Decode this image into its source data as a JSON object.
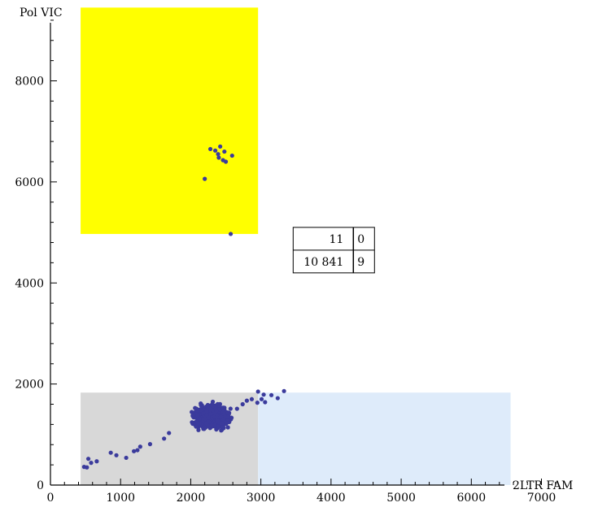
{
  "chart_data": {
    "type": "scatter",
    "title": "",
    "xlabel": "2LTR FAM",
    "ylabel": "Pol VIC",
    "xlim": [
      0,
      7400
    ],
    "ylim": [
      0,
      9600
    ],
    "x_ticks": [
      0,
      1000,
      2000,
      3000,
      4000,
      5000,
      6000,
      7000
    ],
    "y_ticks": [
      0,
      2000,
      4000,
      6000,
      8000
    ],
    "x_tick_labels": [
      "0",
      "1000",
      "2000",
      "3000",
      "4000",
      "5000",
      "6000",
      "7000"
    ],
    "y_tick_labels": [
      "0",
      "2000",
      "4000",
      "6000",
      "8000"
    ],
    "grid": false,
    "point_color": "#3b3b9c",
    "regions": [
      {
        "name": "yellow-gate",
        "x": [
          430,
          2960
        ],
        "y": [
          4970,
          9450
        ],
        "color": "#ffff00"
      },
      {
        "name": "gray-gate",
        "x": [
          430,
          2960
        ],
        "y": [
          0,
          1830
        ],
        "color": "#d8d8d8"
      },
      {
        "name": "blue-gate",
        "x": [
          2960,
          6560
        ],
        "y": [
          0,
          1830
        ],
        "color": "#deebfa"
      }
    ],
    "count_table": {
      "rows": [
        [
          "11",
          "0"
        ],
        [
          "10 841",
          "9"
        ]
      ],
      "anchor": [
        3460,
        5100
      ]
    },
    "points": [
      [
        2280,
        6650
      ],
      [
        2350,
        6620
      ],
      [
        2420,
        6700
      ],
      [
        2480,
        6600
      ],
      [
        2590,
        6520
      ],
      [
        2400,
        6480
      ],
      [
        2460,
        6430
      ],
      [
        2500,
        6400
      ],
      [
        2390,
        6550
      ],
      [
        2200,
        6060
      ],
      [
        2570,
        4970
      ],
      [
        480,
        360
      ],
      [
        540,
        520
      ],
      [
        520,
        350
      ],
      [
        580,
        440
      ],
      [
        660,
        470
      ],
      [
        860,
        640
      ],
      [
        940,
        590
      ],
      [
        1080,
        540
      ],
      [
        1190,
        670
      ],
      [
        1240,
        690
      ],
      [
        1280,
        760
      ],
      [
        1420,
        810
      ],
      [
        1620,
        920
      ],
      [
        1690,
        1030
      ],
      [
        2300,
        1230
      ],
      [
        2300,
        1480
      ],
      [
        2300,
        1200
      ],
      [
        2660,
        1510
      ],
      [
        2740,
        1600
      ],
      [
        2800,
        1670
      ],
      [
        2870,
        1700
      ],
      [
        2950,
        1630
      ],
      [
        3010,
        1700
      ],
      [
        3060,
        1640
      ],
      [
        2960,
        1850
      ],
      [
        3040,
        1790
      ],
      [
        3150,
        1780
      ],
      [
        3240,
        1720
      ],
      [
        3330,
        1860
      ]
    ],
    "cluster": {
      "center": [
        2300,
        1350
      ],
      "spread": [
        180,
        170
      ],
      "count": 900
    }
  }
}
